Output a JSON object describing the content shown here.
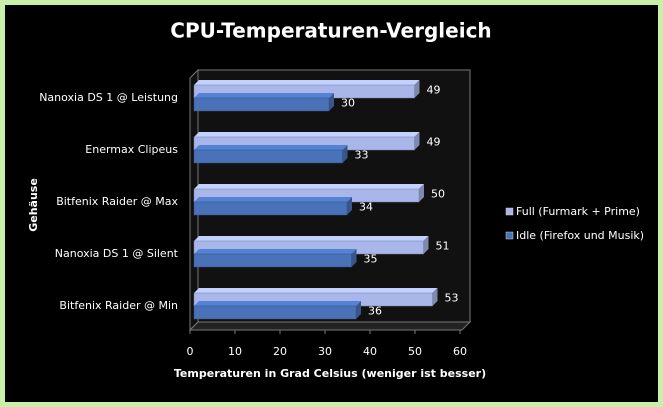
{
  "chart_data": {
    "type": "bar",
    "orientation": "horizontal",
    "title": "CPU-Temperaturen-Vergleich",
    "x_label": "Temperaturen in Grad Celsius (weniger ist besser)",
    "y_label": "Gehäuse",
    "categories": [
      "Nanoxia DS 1 @ Leistung",
      "Enermax Clipeus",
      "Bitfenix Raider @ Max",
      "Nanoxia DS 1 @ Silent",
      "Bitfenix Raider @ Min"
    ],
    "series": [
      {
        "name": "Full (Furmark + Prime)",
        "color": "#a9b6ea",
        "values": [
          49,
          49,
          50,
          51,
          53
        ]
      },
      {
        "name": "Idle (Firefox und Musik)",
        "color": "#4a72b8",
        "values": [
          30,
          33,
          34,
          35,
          36
        ]
      }
    ],
    "xlim": [
      0,
      60
    ],
    "xticks": [
      0,
      10,
      20,
      30,
      40,
      50,
      60
    ],
    "grid": false,
    "legend": "right"
  }
}
